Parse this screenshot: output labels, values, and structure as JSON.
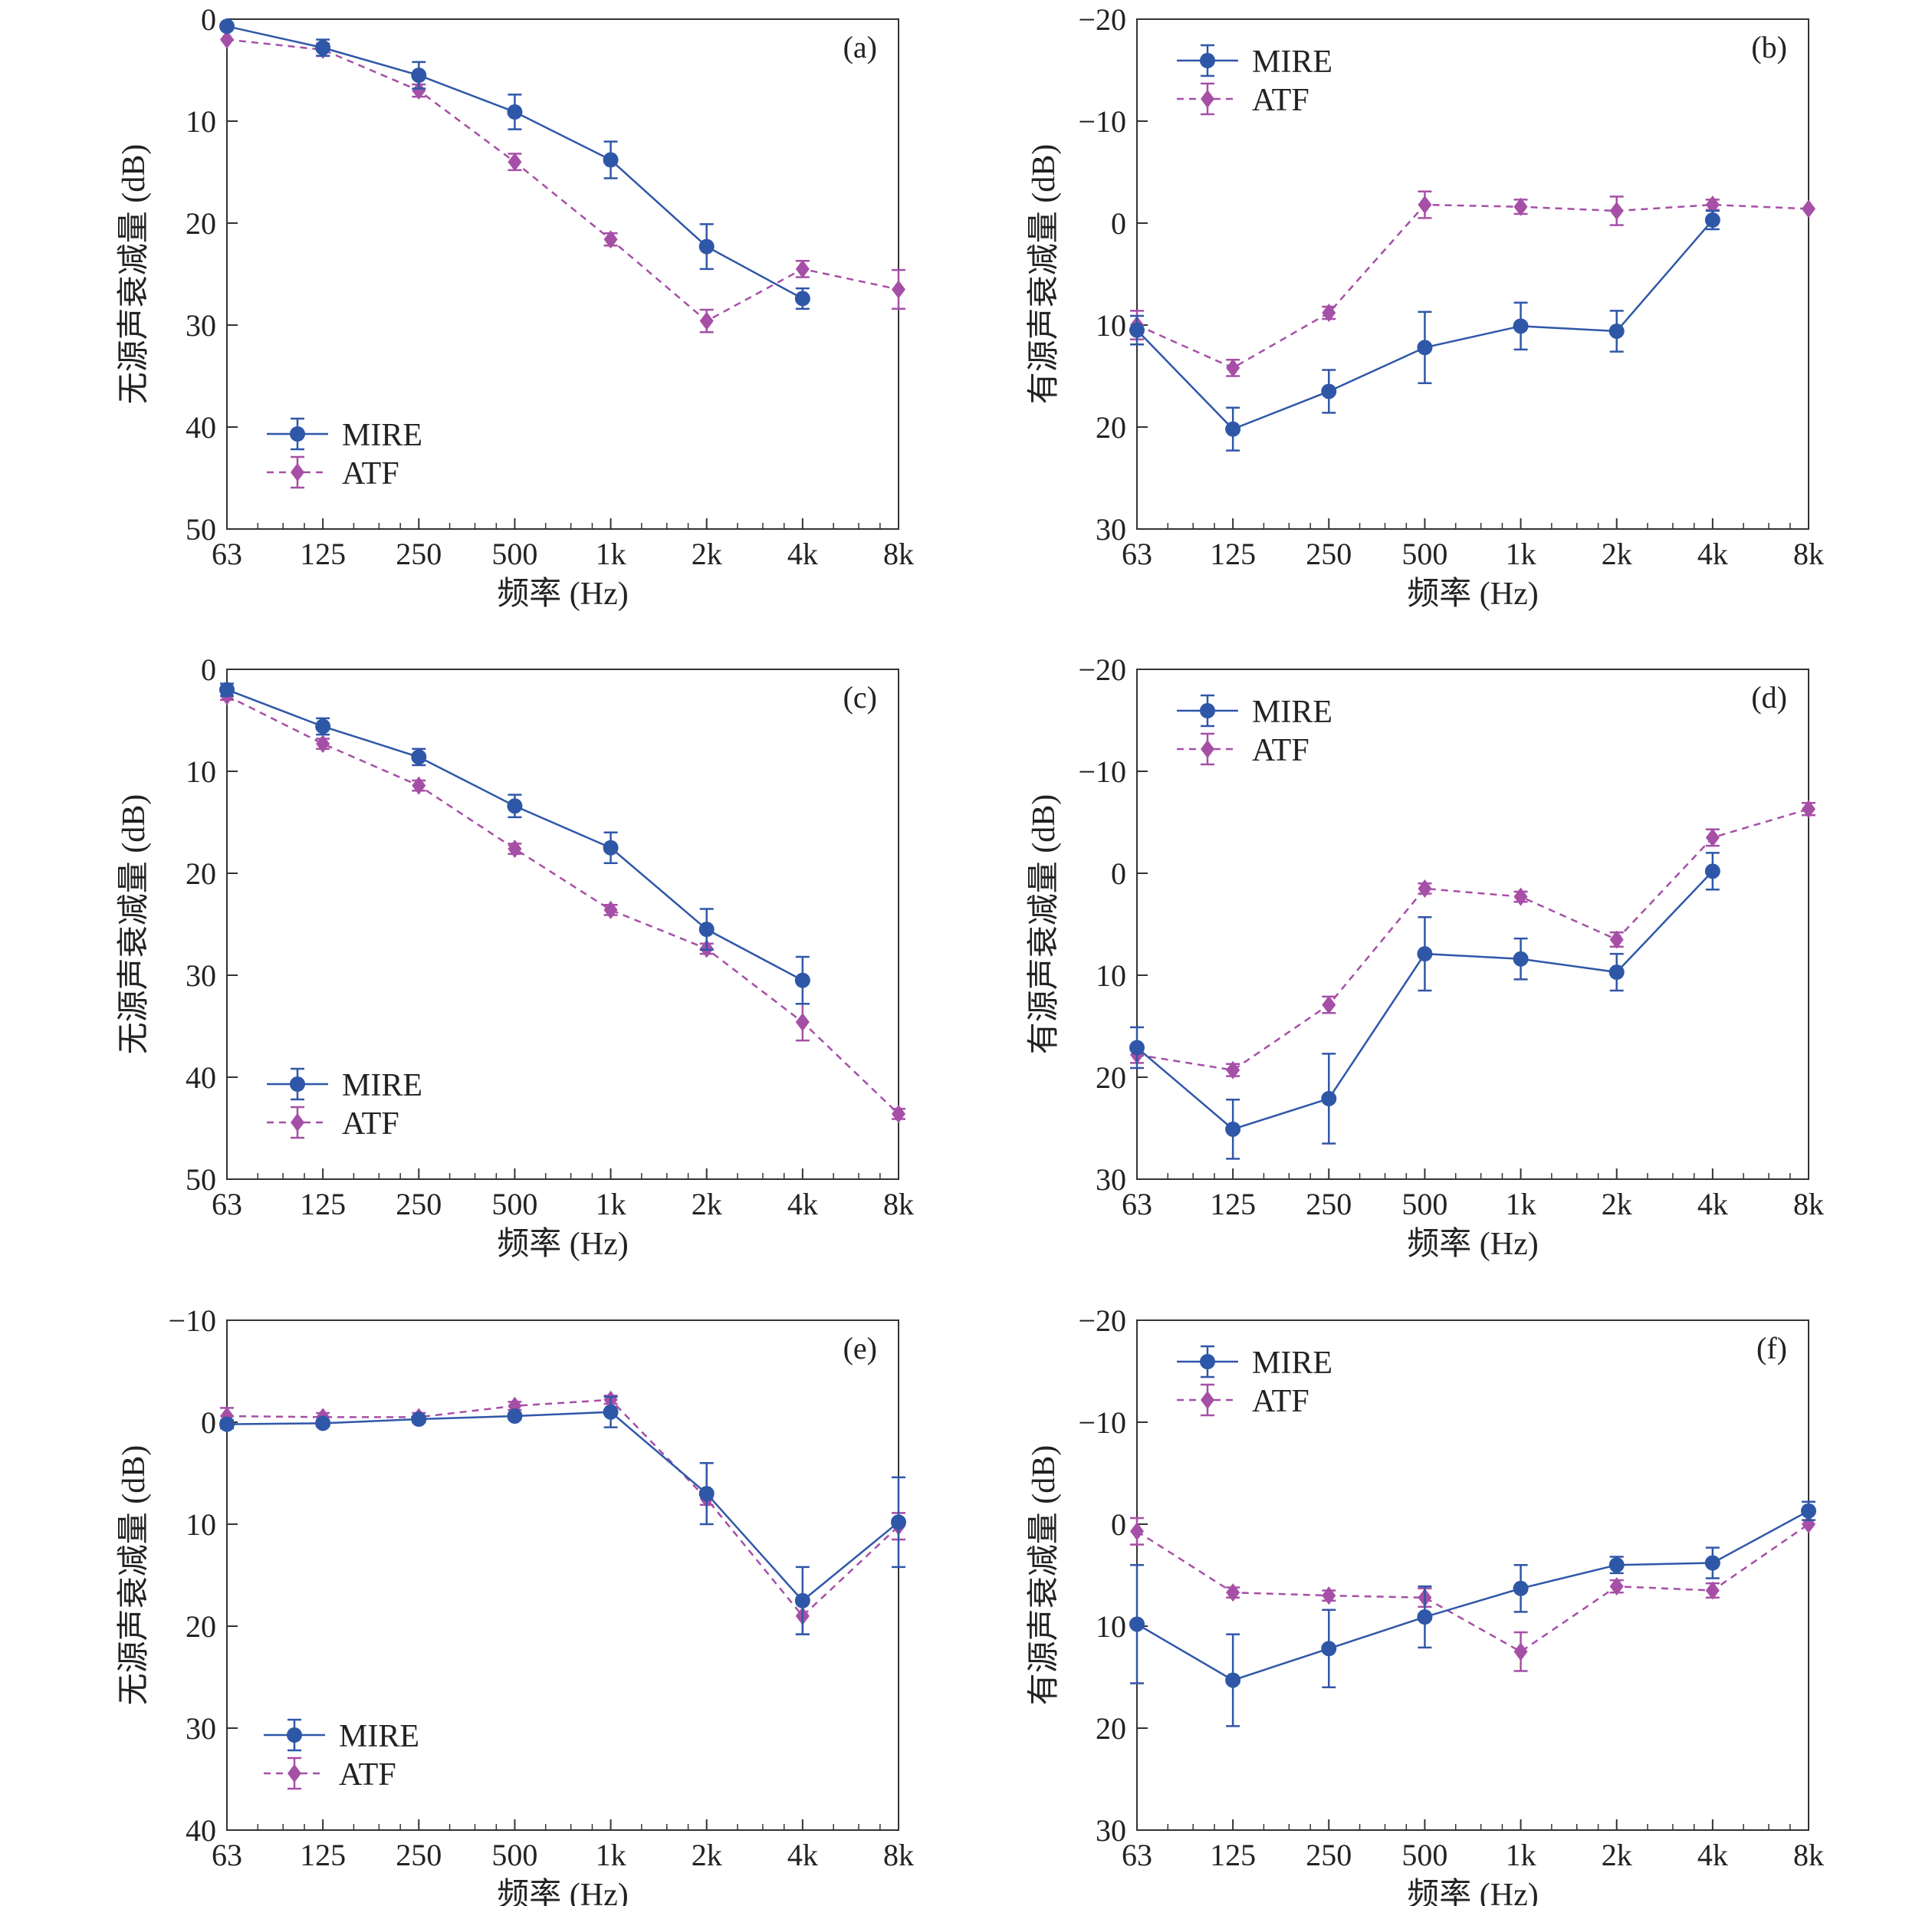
{
  "figure": {
    "x_categories": [
      "63",
      "125",
      "250",
      "500",
      "1k",
      "2k",
      "4k",
      "8k"
    ],
    "colors": {
      "MIRE": "#2f57a8",
      "ATF": "#a64fa6"
    },
    "markers": {
      "MIRE": "circle",
      "ATF": "diamond"
    },
    "line_styles": {
      "MIRE": "solid",
      "ATF": "dashed"
    }
  },
  "chart_data": [
    {
      "type": "line",
      "panel_label": "(a)",
      "xlabel": "频率 (Hz)",
      "ylabel": "无源声衰减量 (dB)",
      "categories": [
        "63",
        "125",
        "250",
        "500",
        "1k",
        "2k",
        "4k",
        "8k"
      ],
      "x_scale": "log2",
      "ylim": [
        0,
        50
      ],
      "y_inverted": true,
      "yticks": [
        0,
        10,
        20,
        30,
        40,
        50
      ],
      "legend_position": "bottom-left",
      "series": [
        {
          "name": "MIRE",
          "values": [
            0.7,
            2.8,
            5.5,
            9.1,
            13.8,
            22.3,
            27.4,
            null
          ],
          "errors": [
            0,
            0.8,
            1.3,
            1.7,
            1.8,
            2.2,
            1.0,
            null
          ]
        },
        {
          "name": "ATF",
          "values": [
            2.0,
            3.0,
            7.0,
            14.0,
            21.6,
            29.6,
            24.5,
            26.5
          ],
          "errors": [
            0,
            0.6,
            0.6,
            0.8,
            0.6,
            1.1,
            0.8,
            1.9
          ]
        }
      ]
    },
    {
      "type": "line",
      "panel_label": "(b)",
      "xlabel": "频率 (Hz)",
      "ylabel": "有源声衰减量 (dB)",
      "categories": [
        "63",
        "125",
        "250",
        "500",
        "1k",
        "2k",
        "4k",
        "8k"
      ],
      "x_scale": "log2",
      "ylim": [
        -20,
        30
      ],
      "y_inverted": true,
      "yticks": [
        -20,
        -10,
        0,
        10,
        20,
        30
      ],
      "legend_position": "top-left",
      "series": [
        {
          "name": "MIRE",
          "values": [
            10.5,
            20.2,
            16.5,
            12.2,
            10.1,
            10.6,
            -0.3,
            null
          ],
          "errors": [
            1.4,
            2.1,
            2.1,
            3.5,
            2.3,
            2.0,
            0.9,
            null
          ]
        },
        {
          "name": "ATF",
          "values": [
            10.0,
            14.2,
            8.8,
            -1.8,
            -1.6,
            -1.2,
            -1.8,
            -1.4
          ],
          "errors": [
            1.4,
            0.8,
            0.6,
            1.3,
            0.7,
            1.4,
            0.5,
            0
          ]
        }
      ]
    },
    {
      "type": "line",
      "panel_label": "(c)",
      "xlabel": "频率 (Hz)",
      "ylabel": "无源声衰减量 (dB)",
      "categories": [
        "63",
        "125",
        "250",
        "500",
        "1k",
        "2k",
        "4k",
        "8k"
      ],
      "x_scale": "log2",
      "ylim": [
        0,
        50
      ],
      "y_inverted": true,
      "yticks": [
        0,
        10,
        20,
        30,
        40,
        50
      ],
      "legend_position": "bottom-left",
      "series": [
        {
          "name": "MIRE",
          "values": [
            2.0,
            5.6,
            8.6,
            13.4,
            17.5,
            25.5,
            30.5,
            null
          ],
          "errors": [
            0.6,
            0.8,
            0.8,
            1.1,
            1.5,
            2.0,
            2.3,
            null
          ]
        },
        {
          "name": "ATF",
          "values": [
            2.6,
            7.3,
            11.4,
            17.6,
            23.6,
            27.4,
            34.6,
            43.6
          ],
          "errors": [
            0.4,
            0.5,
            0.5,
            0.5,
            0.5,
            0.5,
            1.8,
            0.5
          ]
        }
      ]
    },
    {
      "type": "line",
      "panel_label": "(d)",
      "xlabel": "频率 (Hz)",
      "ylabel": "有源声衰减量 (dB)",
      "categories": [
        "63",
        "125",
        "250",
        "500",
        "1k",
        "2k",
        "4k",
        "8k"
      ],
      "x_scale": "log2",
      "ylim": [
        -20,
        30
      ],
      "y_inverted": true,
      "yticks": [
        -20,
        -10,
        0,
        10,
        20,
        30
      ],
      "legend_position": "top-left",
      "series": [
        {
          "name": "MIRE",
          "values": [
            17.1,
            25.1,
            22.1,
            7.9,
            8.4,
            9.7,
            -0.2,
            null
          ],
          "errors": [
            2.0,
            2.9,
            4.4,
            3.6,
            2.0,
            1.8,
            1.8,
            null
          ]
        },
        {
          "name": "ATF",
          "values": [
            17.8,
            19.3,
            12.9,
            1.5,
            2.3,
            6.5,
            -3.5,
            -6.3
          ],
          "errors": [
            0.8,
            0.6,
            0.8,
            0.5,
            0.5,
            0.7,
            0.8,
            0.6
          ]
        }
      ]
    },
    {
      "type": "line",
      "panel_label": "(e)",
      "xlabel": "频率 (Hz)",
      "ylabel": "无源声衰减量 (dB)",
      "categories": [
        "63",
        "125",
        "250",
        "500",
        "1k",
        "2k",
        "4k",
        "8k"
      ],
      "x_scale": "log2",
      "ylim": [
        -10,
        40
      ],
      "y_inverted": true,
      "yticks": [
        -10,
        0,
        10,
        20,
        30,
        40
      ],
      "legend_position": "bottom-left",
      "series": [
        {
          "name": "MIRE",
          "values": [
            0.2,
            0.1,
            -0.3,
            -0.6,
            -1.0,
            7.0,
            17.5,
            9.8
          ],
          "errors": [
            0.4,
            0.3,
            0.3,
            0.3,
            1.5,
            3.0,
            3.3,
            4.4
          ]
        },
        {
          "name": "ATF",
          "values": [
            -0.6,
            -0.5,
            -0.5,
            -1.6,
            -2.2,
            7.5,
            19.0,
            10.2
          ],
          "errors": [
            0.8,
            0.4,
            0.4,
            0.4,
            0.4,
            0.6,
            1.8,
            1.3
          ]
        }
      ]
    },
    {
      "type": "line",
      "panel_label": "(f)",
      "xlabel": "频率 (Hz)",
      "ylabel": "有源声衰减量 (dB)",
      "categories": [
        "63",
        "125",
        "250",
        "500",
        "1k",
        "2k",
        "4k",
        "8k"
      ],
      "x_scale": "log2",
      "ylim": [
        -20,
        30
      ],
      "y_inverted": true,
      "yticks": [
        -20,
        -10,
        0,
        10,
        20,
        30
      ],
      "legend_position": "top-left",
      "series": [
        {
          "name": "MIRE",
          "values": [
            9.8,
            15.3,
            12.2,
            9.1,
            6.3,
            4.0,
            3.8,
            -1.3
          ],
          "errors": [
            5.8,
            4.5,
            3.8,
            3.0,
            2.3,
            0.8,
            1.5,
            0.9
          ]
        },
        {
          "name": "ATF",
          "values": [
            0.7,
            6.7,
            7.0,
            7.2,
            12.5,
            6.1,
            6.5,
            0.0
          ],
          "errors": [
            1.3,
            0.5,
            0.5,
            0.9,
            1.9,
            0.6,
            0.7,
            0
          ]
        }
      ]
    }
  ]
}
